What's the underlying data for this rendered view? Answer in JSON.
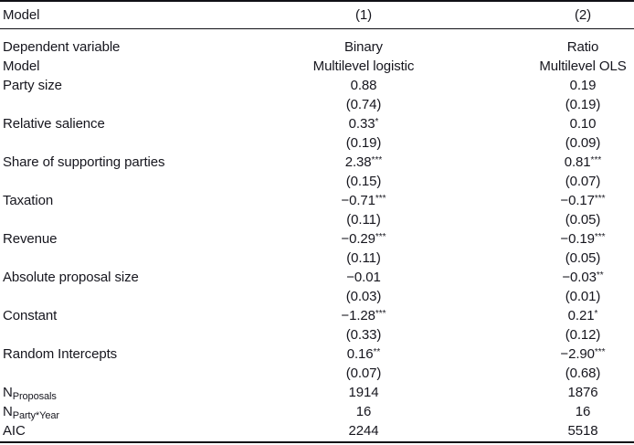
{
  "colors": {
    "text": "#16161e",
    "rule": "#101016",
    "background": "#ffffff"
  },
  "table": {
    "header": {
      "label": "Model",
      "c1": "(1)",
      "c2": "(2)"
    },
    "rows": [
      {
        "label": "Dependent variable",
        "sub": "",
        "c1": "Binary",
        "c1s": "",
        "c2": "Ratio",
        "c2s": ""
      },
      {
        "label": "Model",
        "sub": "",
        "c1": "Multilevel logistic",
        "c1s": "",
        "c2": "Multilevel OLS",
        "c2s": ""
      },
      {
        "label": "Party size",
        "sub": "",
        "c1": "0.88",
        "c1s": "",
        "c2": "0.19",
        "c2s": ""
      },
      {
        "label": "",
        "sub": "",
        "c1": "(0.74)",
        "c1s": "",
        "c2": "(0.19)",
        "c2s": ""
      },
      {
        "label": "Relative salience",
        "sub": "",
        "c1": "0.33",
        "c1s": "*",
        "c2": "0.10",
        "c2s": ""
      },
      {
        "label": "",
        "sub": "",
        "c1": "(0.19)",
        "c1s": "",
        "c2": "(0.09)",
        "c2s": ""
      },
      {
        "label": "Share of supporting parties",
        "sub": "",
        "c1": "2.38",
        "c1s": "***",
        "c2": "0.81",
        "c2s": "***"
      },
      {
        "label": "",
        "sub": "",
        "c1": "(0.15)",
        "c1s": "",
        "c2": "(0.07)",
        "c2s": ""
      },
      {
        "label": "Taxation",
        "sub": "",
        "c1": "−0.71",
        "c1s": "***",
        "c2": "−0.17",
        "c2s": "***"
      },
      {
        "label": "",
        "sub": "",
        "c1": "(0.11)",
        "c1s": "",
        "c2": "(0.05)",
        "c2s": ""
      },
      {
        "label": "Revenue",
        "sub": "",
        "c1": "−0.29",
        "c1s": "***",
        "c2": "−0.19",
        "c2s": "***"
      },
      {
        "label": "",
        "sub": "",
        "c1": "(0.11)",
        "c1s": "",
        "c2": "(0.05)",
        "c2s": ""
      },
      {
        "label": "Absolute proposal size",
        "sub": "",
        "c1": "−0.01",
        "c1s": "",
        "c2": "−0.03",
        "c2s": "**"
      },
      {
        "label": "",
        "sub": "",
        "c1": "(0.03)",
        "c1s": "",
        "c2": "(0.01)",
        "c2s": ""
      },
      {
        "label": "Constant",
        "sub": "",
        "c1": "−1.28",
        "c1s": "***",
        "c2": "0.21",
        "c2s": "*"
      },
      {
        "label": "",
        "sub": "",
        "c1": "(0.33)",
        "c1s": "",
        "c2": "(0.12)",
        "c2s": ""
      },
      {
        "label": "Random Intercepts",
        "sub": "",
        "c1": "0.16",
        "c1s": "**",
        "c2": "−2.90",
        "c2s": "***"
      },
      {
        "label": "",
        "sub": "",
        "c1": "(0.07)",
        "c1s": "",
        "c2": "(0.68)",
        "c2s": ""
      },
      {
        "label": "N",
        "sub": "Proposals",
        "c1": "1914",
        "c1s": "",
        "c2": "1876",
        "c2s": ""
      },
      {
        "label": "N",
        "sub": "Party*Year",
        "c1": "16",
        "c1s": "",
        "c2": "16",
        "c2s": ""
      },
      {
        "label": "AIC",
        "sub": "",
        "c1": "2244",
        "c1s": "",
        "c2": "5518",
        "c2s": ""
      }
    ]
  }
}
